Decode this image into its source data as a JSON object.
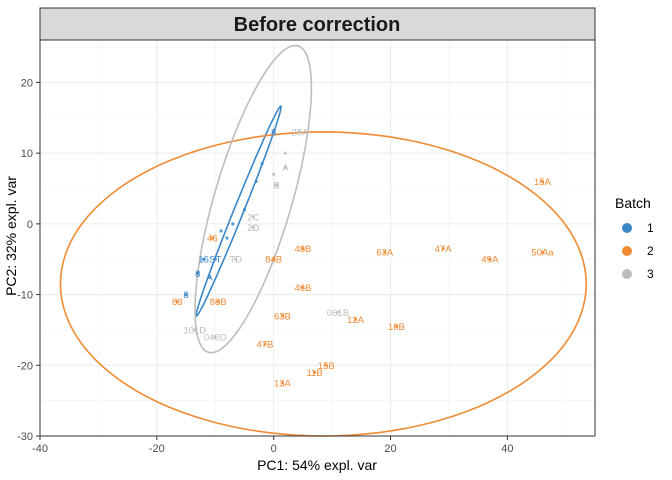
{
  "chart_data": {
    "type": "scatter",
    "title": "Before correction",
    "xlabel": "PC1: 54% expl. var",
    "ylabel": "PC2: 32% expl. var",
    "xlim": [
      -40,
      55
    ],
    "ylim": [
      -30,
      26
    ],
    "xticks": [
      -40,
      -20,
      0,
      20,
      40
    ],
    "yticks": [
      -30,
      -20,
      -10,
      0,
      10,
      20
    ],
    "xtick_labels": [
      "-40",
      "-20",
      "0",
      "20",
      "40"
    ],
    "ytick_labels": [
      "-30",
      "-20",
      "-10",
      "0",
      "10",
      "20"
    ],
    "grid": true,
    "legend": {
      "title": "Batch",
      "position": "right",
      "entries": [
        {
          "label": "1",
          "color": "#3a87c8"
        },
        {
          "label": "2",
          "color": "#f08a33"
        },
        {
          "label": "3",
          "color": "#bdbdbd"
        }
      ]
    },
    "series": [
      {
        "name": "1",
        "color": "#3a87c8",
        "points": [
          {
            "label": "8",
            "x": 0,
            "y": 13
          },
          {
            "label": "",
            "x": -2,
            "y": 8.5
          },
          {
            "label": "",
            "x": -3,
            "y": 6
          },
          {
            "label": "",
            "x": -5,
            "y": 2
          },
          {
            "label": "",
            "x": -7,
            "y": 0
          },
          {
            "label": "",
            "x": -9,
            "y": -1
          },
          {
            "label": "",
            "x": -8,
            "y": -2
          },
          {
            "label": "16",
            "x": -12,
            "y": -5
          },
          {
            "label": "ST",
            "x": -10,
            "y": -5
          },
          {
            "label": "8",
            "x": -13,
            "y": -7
          },
          {
            "label": "A",
            "x": -11,
            "y": -7.5
          },
          {
            "label": "8",
            "x": -15,
            "y": -10
          }
        ]
      },
      {
        "name": "2",
        "color": "#f08a33",
        "points": [
          {
            "label": "15A",
            "x": 46,
            "y": 6
          },
          {
            "label": "63A",
            "x": 19,
            "y": -4
          },
          {
            "label": "47A",
            "x": 29,
            "y": -3.5
          },
          {
            "label": "49A",
            "x": 37,
            "y": -5
          },
          {
            "label": "50Aa",
            "x": 46,
            "y": -4
          },
          {
            "label": "48B",
            "x": 5,
            "y": -3.5
          },
          {
            "label": "46",
            "x": -10.5,
            "y": -2
          },
          {
            "label": "84B",
            "x": 0,
            "y": -5
          },
          {
            "label": "46B",
            "x": 5,
            "y": -9
          },
          {
            "label": "63B",
            "x": 1.5,
            "y": -13
          },
          {
            "label": "12A",
            "x": 14,
            "y": -13.5
          },
          {
            "label": "10B",
            "x": 21,
            "y": -14.5
          },
          {
            "label": "88B",
            "x": -9.5,
            "y": -11
          },
          {
            "label": "83",
            "x": -16.5,
            "y": -11
          },
          {
            "label": "47B",
            "x": -1.5,
            "y": -17
          },
          {
            "label": "15B",
            "x": 9,
            "y": -20
          },
          {
            "label": "11B",
            "x": 7,
            "y": -21
          },
          {
            "label": "13A",
            "x": 1.5,
            "y": -22.5
          }
        ]
      },
      {
        "name": "3",
        "color": "#bdbdbd",
        "points": [
          {
            "label": "25A",
            "x": 4.5,
            "y": 13
          },
          {
            "label": "",
            "x": 2,
            "y": 10
          },
          {
            "label": "A",
            "x": 2,
            "y": 8
          },
          {
            "label": "",
            "x": 0,
            "y": 7
          },
          {
            "label": "B",
            "x": 0.5,
            "y": 5.5
          },
          {
            "label": "2C",
            "x": -3.5,
            "y": 1
          },
          {
            "label": "2D",
            "x": -3.5,
            "y": -0.5
          },
          {
            "label": "TD",
            "x": -6.5,
            "y": -5
          },
          {
            "label": "061B",
            "x": 11,
            "y": -12.5
          },
          {
            "label": "101D",
            "x": -13.5,
            "y": -15
          },
          {
            "label": "040D",
            "x": -10,
            "y": -16
          }
        ]
      }
    ],
    "ellipses": [
      {
        "series": "1",
        "center_x": -6,
        "center_y": 1.8,
        "semi_major": 16.5,
        "semi_minor": 0.8,
        "angle_deg": 64
      },
      {
        "series": "2",
        "center_x": 8.5,
        "center_y": -8.5,
        "semi_major": 45,
        "semi_minor": 21.5,
        "angle_deg": 0
      },
      {
        "series": "3",
        "center_x": -3.5,
        "center_y": 3.5,
        "semi_major": 23,
        "semi_minor": 6.5,
        "angle_deg": 70
      }
    ]
  }
}
